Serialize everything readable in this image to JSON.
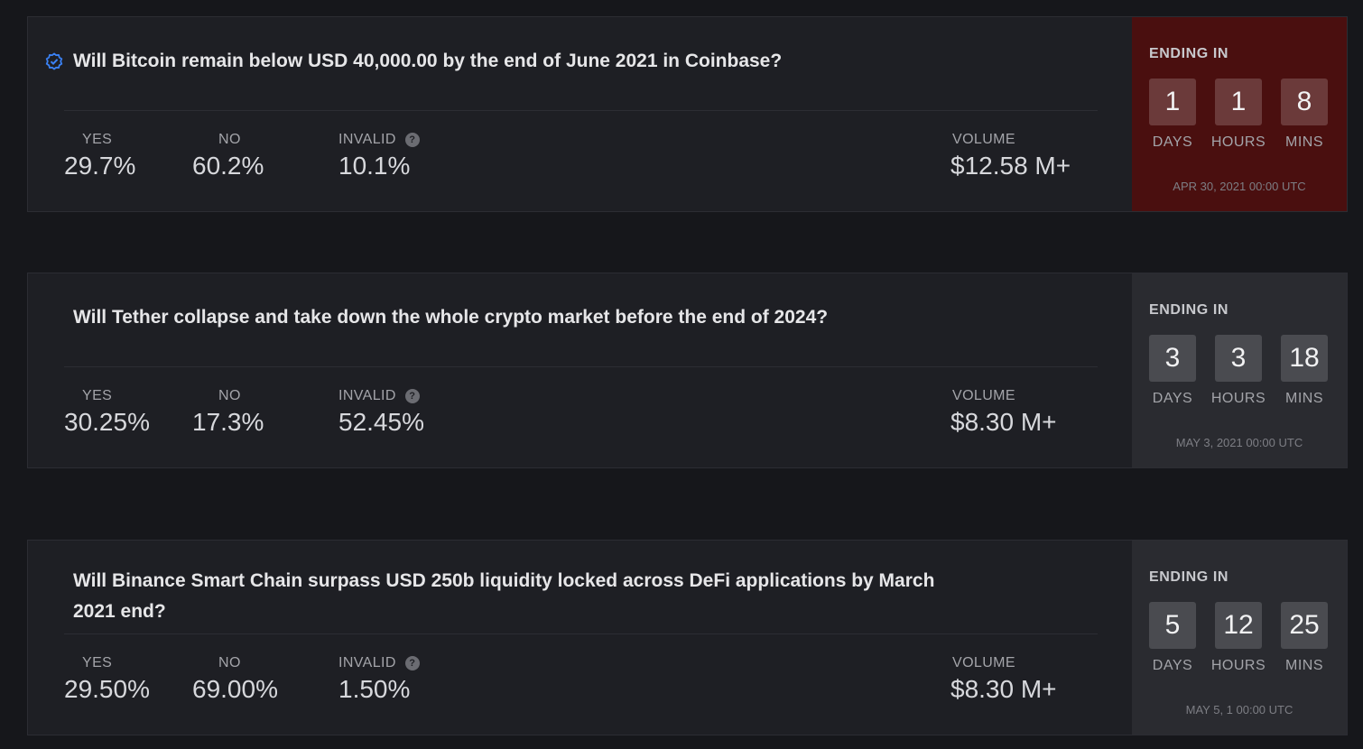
{
  "markets": [
    {
      "question": "Will Bitcoin remain below USD 40,000.00 by the end of June 2021 in Coinbase?",
      "verified": true,
      "yes_label": "YES",
      "yes_value": "29.7%",
      "no_label": "NO",
      "no_value": "60.2%",
      "invalid_label": "INVALID",
      "invalid_value": "10.1%",
      "volume_label": "VOLUME",
      "volume_value": "$12.58 M+",
      "ending_label": "ENDING IN",
      "days": "1",
      "hours": "1",
      "mins": "8",
      "days_label": "DAYS",
      "hours_label": "HOURS",
      "mins_label": "MINS",
      "end_date": "APR 30, 2021 00:00 UTC",
      "urgent": true
    },
    {
      "question": "Will Tether collapse and take down the whole crypto market before the end of 2024?",
      "verified": false,
      "yes_label": "YES",
      "yes_value": "30.25%",
      "no_label": "NO",
      "no_value": "17.3%",
      "invalid_label": "INVALID",
      "invalid_value": "52.45%",
      "volume_label": "VOLUME",
      "volume_value": "$8.30 M+",
      "ending_label": "ENDING IN",
      "days": "3",
      "hours": "3",
      "mins": "18",
      "days_label": "DAYS",
      "hours_label": "HOURS",
      "mins_label": "MINS",
      "end_date": "MAY 3, 2021 00:00 UTC",
      "urgent": false
    },
    {
      "question": "Will Binance Smart Chain surpass USD 250b liquidity locked across DeFi applications by March 2021 end?",
      "verified": false,
      "yes_label": "YES",
      "yes_value": "29.50%",
      "no_label": "NO",
      "no_value": "69.00%",
      "invalid_label": "INVALID",
      "invalid_value": "1.50%",
      "volume_label": "VOLUME",
      "volume_value": "$8.30 M+",
      "ending_label": "ENDING IN",
      "days": "5",
      "hours": "12",
      "mins": "25",
      "days_label": "DAYS",
      "hours_label": "HOURS",
      "mins_label": "MINS",
      "end_date": "MAY 5, 1 00:00 UTC",
      "urgent": false
    }
  ],
  "help_glyph": "?",
  "icons": {
    "verified": "verified-badge-icon",
    "help": "help-icon"
  },
  "colors": {
    "background": "#16171b",
    "card": "#1e1f24",
    "countdown": "#2a2b30",
    "countdown_urgent": "#4a0f0f",
    "verified_accent": "#3b82f6"
  }
}
